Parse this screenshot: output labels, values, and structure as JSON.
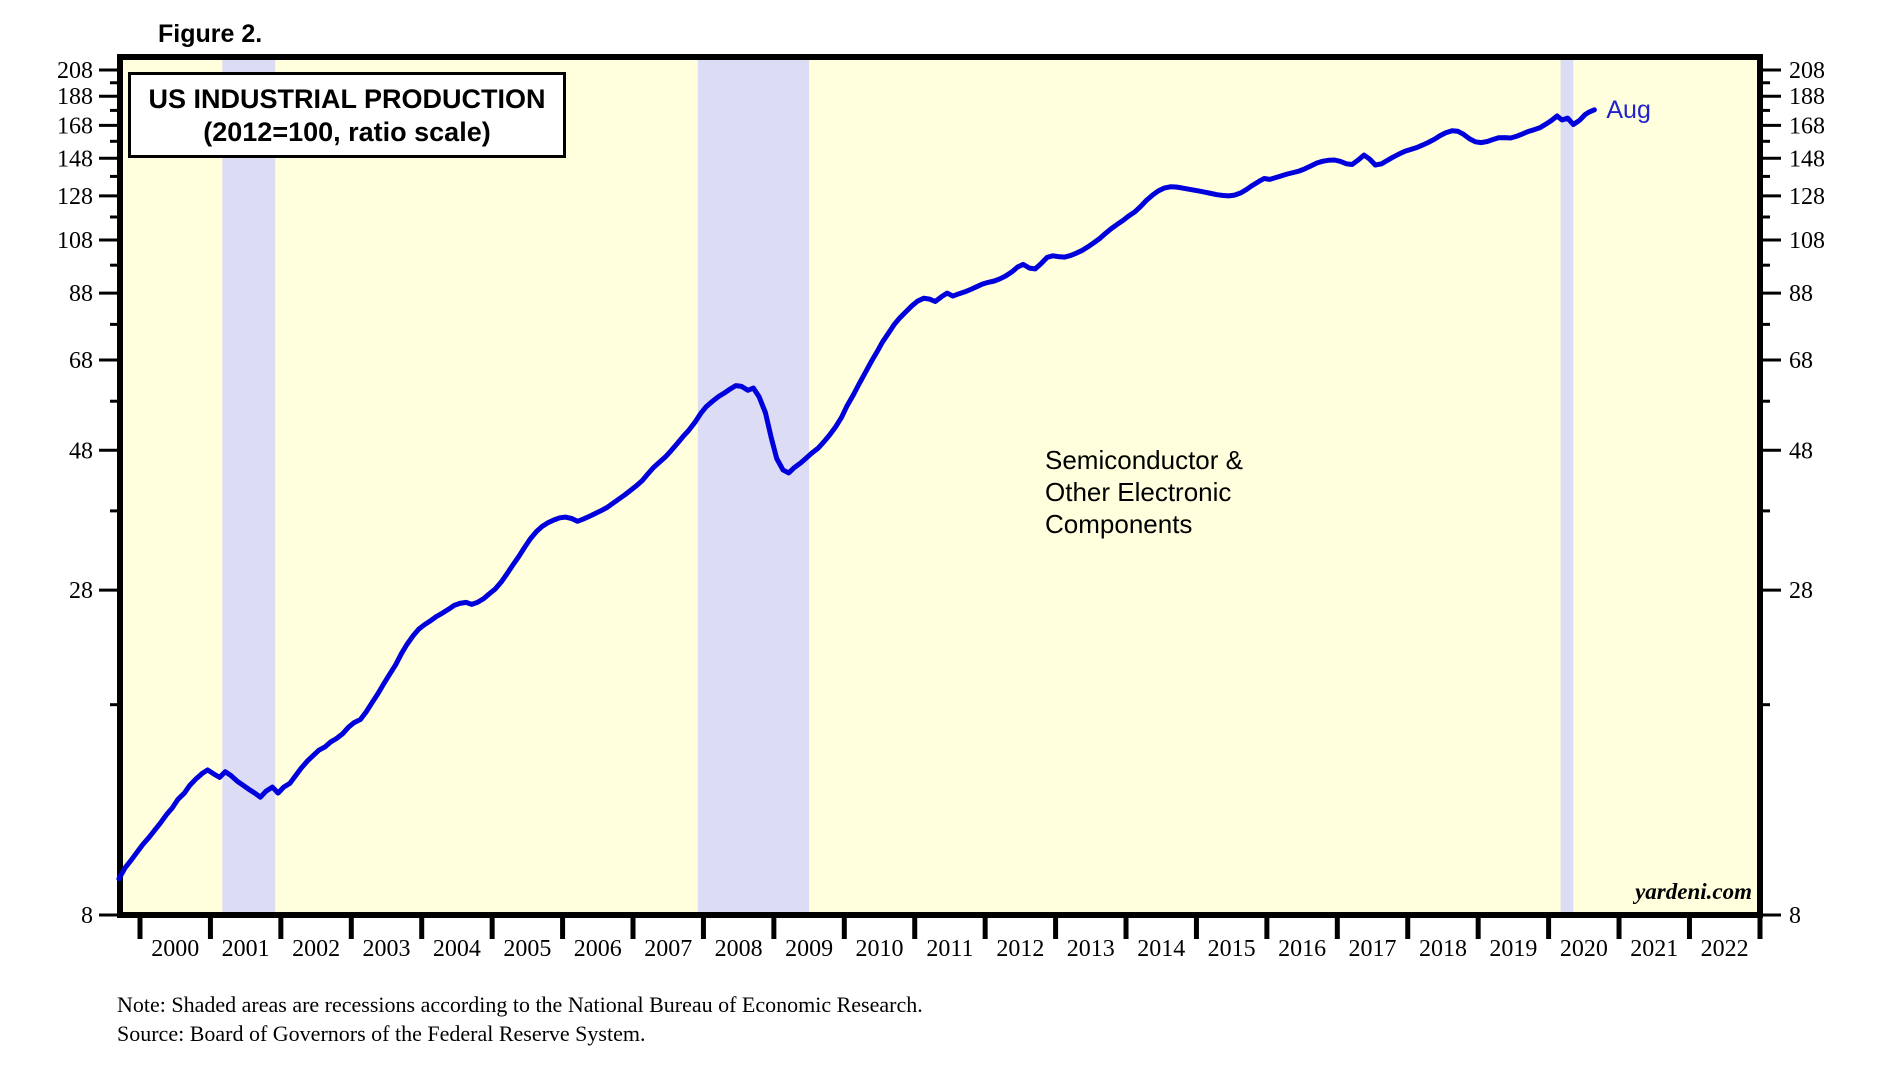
{
  "figure_label": "Figure 2.",
  "title": {
    "line1": "US INDUSTRIAL PRODUCTION",
    "line2": "(2012=100, ratio scale)"
  },
  "annotation": {
    "line1": "Semiconductor &",
    "line2": "Other Electronic",
    "line3": "Components"
  },
  "end_label": "Aug",
  "watermark": "yardeni.com",
  "notes": {
    "note": "Note: Shaded areas are recessions according to the National Bureau of Economic Research.",
    "source": "Source: Board of Governors of the Federal Reserve System."
  },
  "colors": {
    "plot_bg": "#FFFFDE",
    "recession_band": "#DCDCF5",
    "line": "#0000DC",
    "end_label_blue": "#2222CC",
    "axis": "#000000"
  },
  "chart_data": {
    "type": "line",
    "title": "US INDUSTRIAL PRODUCTION (2012=100, ratio scale)",
    "series_name": "Semiconductor & Other Electronic Components",
    "scale": "log",
    "grid": false,
    "legend_position": "none",
    "ylim": [
      8,
      208
    ],
    "x_range": [
      1999.7,
      2023.0
    ],
    "y_ticks_major": [
      208,
      188,
      168,
      148,
      128,
      108,
      88,
      68,
      48,
      28,
      8
    ],
    "y_ticks_minor": [
      198,
      178,
      158,
      138,
      118,
      98,
      78,
      58,
      38,
      18
    ],
    "x_year_labels": [
      2000,
      2001,
      2002,
      2003,
      2004,
      2005,
      2006,
      2007,
      2008,
      2009,
      2010,
      2011,
      2012,
      2013,
      2014,
      2015,
      2016,
      2017,
      2018,
      2019,
      2020,
      2021,
      2022
    ],
    "recessions": [
      [
        2001.17,
        2001.92
      ],
      [
        2007.92,
        2009.5
      ],
      [
        2020.17,
        2020.35
      ]
    ],
    "last_point_label": "Aug",
    "points": [
      [
        1999.7,
        9.2
      ],
      [
        1999.79,
        9.6
      ],
      [
        1999.88,
        9.9
      ],
      [
        1999.96,
        10.2
      ],
      [
        2000.04,
        10.5
      ],
      [
        2000.13,
        10.8
      ],
      [
        2000.21,
        11.1
      ],
      [
        2000.29,
        11.4
      ],
      [
        2000.38,
        11.8
      ],
      [
        2000.46,
        12.1
      ],
      [
        2000.54,
        12.5
      ],
      [
        2000.63,
        12.8
      ],
      [
        2000.71,
        13.2
      ],
      [
        2000.79,
        13.5
      ],
      [
        2000.88,
        13.8
      ],
      [
        2000.96,
        14.0
      ],
      [
        2001.04,
        13.8
      ],
      [
        2001.13,
        13.6
      ],
      [
        2001.21,
        13.9
      ],
      [
        2001.29,
        13.7
      ],
      [
        2001.38,
        13.4
      ],
      [
        2001.46,
        13.2
      ],
      [
        2001.54,
        13.0
      ],
      [
        2001.63,
        12.8
      ],
      [
        2001.71,
        12.6
      ],
      [
        2001.79,
        12.9
      ],
      [
        2001.88,
        13.1
      ],
      [
        2001.96,
        12.8
      ],
      [
        2002.04,
        13.1
      ],
      [
        2002.13,
        13.3
      ],
      [
        2002.21,
        13.7
      ],
      [
        2002.29,
        14.1
      ],
      [
        2002.38,
        14.5
      ],
      [
        2002.46,
        14.8
      ],
      [
        2002.54,
        15.1
      ],
      [
        2002.63,
        15.3
      ],
      [
        2002.71,
        15.6
      ],
      [
        2002.79,
        15.8
      ],
      [
        2002.88,
        16.1
      ],
      [
        2002.96,
        16.5
      ],
      [
        2003.04,
        16.8
      ],
      [
        2003.13,
        17.0
      ],
      [
        2003.21,
        17.5
      ],
      [
        2003.29,
        18.1
      ],
      [
        2003.38,
        18.8
      ],
      [
        2003.46,
        19.5
      ],
      [
        2003.54,
        20.2
      ],
      [
        2003.63,
        21.0
      ],
      [
        2003.71,
        21.9
      ],
      [
        2003.79,
        22.7
      ],
      [
        2003.88,
        23.5
      ],
      [
        2003.96,
        24.1
      ],
      [
        2004.04,
        24.5
      ],
      [
        2004.13,
        24.9
      ],
      [
        2004.21,
        25.3
      ],
      [
        2004.29,
        25.6
      ],
      [
        2004.38,
        26.0
      ],
      [
        2004.46,
        26.4
      ],
      [
        2004.54,
        26.6
      ],
      [
        2004.63,
        26.7
      ],
      [
        2004.71,
        26.5
      ],
      [
        2004.79,
        26.7
      ],
      [
        2004.88,
        27.1
      ],
      [
        2004.96,
        27.6
      ],
      [
        2005.04,
        28.1
      ],
      [
        2005.13,
        28.9
      ],
      [
        2005.21,
        29.8
      ],
      [
        2005.29,
        30.8
      ],
      [
        2005.38,
        31.9
      ],
      [
        2005.46,
        33.0
      ],
      [
        2005.54,
        34.1
      ],
      [
        2005.63,
        35.1
      ],
      [
        2005.71,
        35.8
      ],
      [
        2005.79,
        36.3
      ],
      [
        2005.88,
        36.7
      ],
      [
        2005.96,
        37.0
      ],
      [
        2006.04,
        37.1
      ],
      [
        2006.13,
        36.9
      ],
      [
        2006.21,
        36.5
      ],
      [
        2006.29,
        36.8
      ],
      [
        2006.38,
        37.2
      ],
      [
        2006.46,
        37.6
      ],
      [
        2006.54,
        38.0
      ],
      [
        2006.63,
        38.5
      ],
      [
        2006.71,
        39.1
      ],
      [
        2006.79,
        39.7
      ],
      [
        2006.88,
        40.4
      ],
      [
        2006.96,
        41.1
      ],
      [
        2007.04,
        41.8
      ],
      [
        2007.13,
        42.7
      ],
      [
        2007.21,
        43.8
      ],
      [
        2007.29,
        44.9
      ],
      [
        2007.38,
        45.9
      ],
      [
        2007.46,
        46.8
      ],
      [
        2007.54,
        47.9
      ],
      [
        2007.63,
        49.3
      ],
      [
        2007.71,
        50.6
      ],
      [
        2007.79,
        51.8
      ],
      [
        2007.88,
        53.5
      ],
      [
        2007.96,
        55.3
      ],
      [
        2008.04,
        56.8
      ],
      [
        2008.13,
        58.0
      ],
      [
        2008.21,
        59.0
      ],
      [
        2008.29,
        59.8
      ],
      [
        2008.38,
        60.8
      ],
      [
        2008.46,
        61.6
      ],
      [
        2008.54,
        61.4
      ],
      [
        2008.63,
        60.5
      ],
      [
        2008.71,
        61.0
      ],
      [
        2008.79,
        59.0
      ],
      [
        2008.88,
        55.5
      ],
      [
        2008.96,
        50.5
      ],
      [
        2009.04,
        46.5
      ],
      [
        2009.13,
        44.5
      ],
      [
        2009.21,
        44.0
      ],
      [
        2009.29,
        44.9
      ],
      [
        2009.38,
        45.7
      ],
      [
        2009.46,
        46.6
      ],
      [
        2009.54,
        47.5
      ],
      [
        2009.63,
        48.4
      ],
      [
        2009.71,
        49.6
      ],
      [
        2009.79,
        50.9
      ],
      [
        2009.88,
        52.6
      ],
      [
        2009.96,
        54.5
      ],
      [
        2010.04,
        57.0
      ],
      [
        2010.13,
        59.5
      ],
      [
        2010.21,
        62.0
      ],
      [
        2010.29,
        64.5
      ],
      [
        2010.38,
        67.5
      ],
      [
        2010.46,
        70.0
      ],
      [
        2010.54,
        72.8
      ],
      [
        2010.63,
        75.5
      ],
      [
        2010.71,
        78.0
      ],
      [
        2010.79,
        80.0
      ],
      [
        2010.88,
        82.0
      ],
      [
        2010.96,
        83.8
      ],
      [
        2011.04,
        85.3
      ],
      [
        2011.13,
        86.3
      ],
      [
        2011.21,
        86.0
      ],
      [
        2011.29,
        85.2
      ],
      [
        2011.38,
        86.8
      ],
      [
        2011.46,
        88.0
      ],
      [
        2011.54,
        87.0
      ],
      [
        2011.63,
        87.8
      ],
      [
        2011.71,
        88.4
      ],
      [
        2011.79,
        89.2
      ],
      [
        2011.88,
        90.2
      ],
      [
        2011.96,
        91.1
      ],
      [
        2012.04,
        91.7
      ],
      [
        2012.13,
        92.2
      ],
      [
        2012.21,
        93.0
      ],
      [
        2012.29,
        94.0
      ],
      [
        2012.38,
        95.5
      ],
      [
        2012.46,
        97.3
      ],
      [
        2012.54,
        98.3
      ],
      [
        2012.63,
        96.9
      ],
      [
        2012.71,
        96.6
      ],
      [
        2012.79,
        98.5
      ],
      [
        2012.88,
        101.0
      ],
      [
        2012.96,
        101.6
      ],
      [
        2013.04,
        101.3
      ],
      [
        2013.13,
        101.1
      ],
      [
        2013.21,
        101.7
      ],
      [
        2013.29,
        102.6
      ],
      [
        2013.38,
        103.8
      ],
      [
        2013.46,
        105.2
      ],
      [
        2013.54,
        106.8
      ],
      [
        2013.63,
        108.7
      ],
      [
        2013.71,
        110.8
      ],
      [
        2013.79,
        112.8
      ],
      [
        2013.88,
        114.8
      ],
      [
        2013.96,
        116.5
      ],
      [
        2014.04,
        118.5
      ],
      [
        2014.13,
        120.5
      ],
      [
        2014.21,
        123.0
      ],
      [
        2014.29,
        125.8
      ],
      [
        2014.38,
        128.5
      ],
      [
        2014.46,
        130.5
      ],
      [
        2014.54,
        131.9
      ],
      [
        2014.63,
        132.6
      ],
      [
        2014.71,
        132.5
      ],
      [
        2014.79,
        132.0
      ],
      [
        2014.88,
        131.4
      ],
      [
        2014.96,
        130.9
      ],
      [
        2015.04,
        130.4
      ],
      [
        2015.13,
        129.8
      ],
      [
        2015.21,
        129.2
      ],
      [
        2015.29,
        128.6
      ],
      [
        2015.38,
        128.2
      ],
      [
        2015.46,
        128.0
      ],
      [
        2015.54,
        128.4
      ],
      [
        2015.63,
        129.5
      ],
      [
        2015.71,
        131.2
      ],
      [
        2015.79,
        133.2
      ],
      [
        2015.88,
        135.2
      ],
      [
        2015.96,
        136.9
      ],
      [
        2016.04,
        136.4
      ],
      [
        2016.13,
        137.4
      ],
      [
        2016.21,
        138.4
      ],
      [
        2016.29,
        139.3
      ],
      [
        2016.38,
        140.1
      ],
      [
        2016.46,
        140.9
      ],
      [
        2016.54,
        142.1
      ],
      [
        2016.63,
        143.8
      ],
      [
        2016.71,
        145.3
      ],
      [
        2016.79,
        146.3
      ],
      [
        2016.88,
        146.9
      ],
      [
        2016.96,
        147.0
      ],
      [
        2017.04,
        146.3
      ],
      [
        2017.13,
        144.9
      ],
      [
        2017.21,
        144.5
      ],
      [
        2017.29,
        146.8
      ],
      [
        2017.38,
        149.8
      ],
      [
        2017.46,
        147.5
      ],
      [
        2017.54,
        144.2
      ],
      [
        2017.63,
        144.9
      ],
      [
        2017.71,
        146.8
      ],
      [
        2017.79,
        148.6
      ],
      [
        2017.88,
        150.5
      ],
      [
        2017.96,
        152.0
      ],
      [
        2018.04,
        153.1
      ],
      [
        2018.13,
        154.3
      ],
      [
        2018.21,
        155.7
      ],
      [
        2018.29,
        157.3
      ],
      [
        2018.38,
        159.3
      ],
      [
        2018.46,
        161.5
      ],
      [
        2018.54,
        163.3
      ],
      [
        2018.63,
        164.6
      ],
      [
        2018.71,
        164.3
      ],
      [
        2018.79,
        162.4
      ],
      [
        2018.88,
        159.5
      ],
      [
        2018.96,
        157.7
      ],
      [
        2019.04,
        157.2
      ],
      [
        2019.13,
        157.9
      ],
      [
        2019.21,
        159.1
      ],
      [
        2019.29,
        160.2
      ],
      [
        2019.38,
        160.3
      ],
      [
        2019.46,
        160.0
      ],
      [
        2019.54,
        161.0
      ],
      [
        2019.63,
        162.6
      ],
      [
        2019.71,
        164.1
      ],
      [
        2019.79,
        165.2
      ],
      [
        2019.88,
        166.6
      ],
      [
        2019.96,
        168.8
      ],
      [
        2020.04,
        171.2
      ],
      [
        2020.12,
        174.2
      ],
      [
        2020.19,
        171.5
      ],
      [
        2020.27,
        172.8
      ],
      [
        2020.35,
        168.6
      ],
      [
        2020.44,
        171.3
      ],
      [
        2020.52,
        175.2
      ],
      [
        2020.58,
        177.0
      ],
      [
        2020.65,
        178.4
      ]
    ]
  }
}
